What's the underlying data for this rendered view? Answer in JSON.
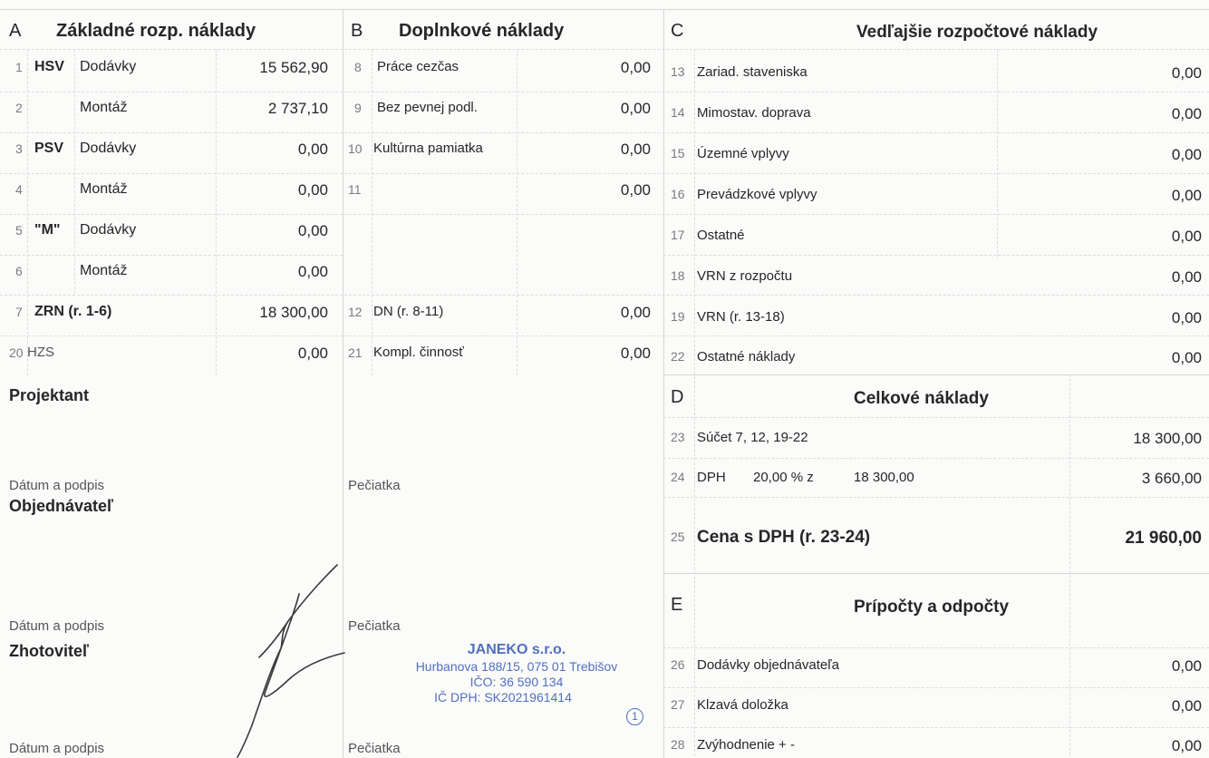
{
  "sections": {
    "a": {
      "letter": "A",
      "title": "Základné rozp. náklady"
    },
    "b": {
      "letter": "B",
      "title": "Doplnkové náklady"
    },
    "c": {
      "letter": "C",
      "title": "Vedľajšie rozpočtové náklady"
    },
    "d": {
      "letter": "D",
      "title": "Celkové náklady"
    },
    "e": {
      "letter": "E",
      "title": "Prípočty a odpočty"
    }
  },
  "a_rows": [
    {
      "num": "1",
      "group": "HSV",
      "label": "Dodávky",
      "value": "15 562,90"
    },
    {
      "num": "2",
      "group": "",
      "label": "Montáž",
      "value": "2 737,10"
    },
    {
      "num": "3",
      "group": "PSV",
      "label": "Dodávky",
      "value": "0,00"
    },
    {
      "num": "4",
      "group": "",
      "label": "Montáž",
      "value": "0,00"
    },
    {
      "num": "5",
      "group": "\"M\"",
      "label": "Dodávky",
      "value": "0,00"
    },
    {
      "num": "6",
      "group": "",
      "label": "Montáž",
      "value": "0,00"
    },
    {
      "num": "7",
      "group": "ZRN (r. 1-6)",
      "label": "",
      "value": "18 300,00"
    },
    {
      "num": "20",
      "group": "HZS",
      "label": "",
      "value": "0,00"
    }
  ],
  "b_rows": [
    {
      "num": "8",
      "label": "Práce cezčas",
      "value": "0,00"
    },
    {
      "num": "9",
      "label": "Bez pevnej podl.",
      "value": "0,00"
    },
    {
      "num": "10",
      "label": "Kultúrna pamiatka",
      "value": "0,00"
    },
    {
      "num": "11",
      "label": "",
      "value": "0,00"
    },
    {
      "num": "12",
      "label": "DN (r. 8-11)",
      "value": "0,00"
    },
    {
      "num": "21",
      "label": "Kompl. činnosť",
      "value": "0,00"
    }
  ],
  "c_rows": [
    {
      "num": "13",
      "label": "Zariad. staveniska",
      "value": "0,00"
    },
    {
      "num": "14",
      "label": "Mimostav. doprava",
      "value": "0,00"
    },
    {
      "num": "15",
      "label": "Územné vplyvy",
      "value": "0,00"
    },
    {
      "num": "16",
      "label": "Prevádzkové vplyvy",
      "value": "0,00"
    },
    {
      "num": "17",
      "label": "Ostatné",
      "value": "0,00"
    },
    {
      "num": "18",
      "label": "VRN z rozpočtu",
      "value": "0,00"
    },
    {
      "num": "19",
      "label": "VRN (r. 13-18)",
      "value": "0,00"
    },
    {
      "num": "22",
      "label": "Ostatné náklady",
      "value": "0,00"
    }
  ],
  "d_rows": {
    "r23": {
      "num": "23",
      "label": "Súčet 7, 12, 19-22",
      "value": "18 300,00"
    },
    "r24": {
      "num": "24",
      "label": "DPH",
      "rate": "20,00 % z",
      "base": "18 300,00",
      "value": "3 660,00"
    },
    "r25": {
      "num": "25",
      "label": "Cena s DPH (r. 23-24)",
      "value": "21 960,00"
    }
  },
  "e_rows": [
    {
      "num": "26",
      "label": "Dodávky objednávateľa",
      "value": "0,00"
    },
    {
      "num": "27",
      "label": "Klzavá doložka",
      "value": "0,00"
    },
    {
      "num": "28",
      "label": "Zvýhodnenie + -",
      "value": "0,00"
    }
  ],
  "signatures": {
    "projektant": "Projektant",
    "objednavatel": "Objednávateľ",
    "zhotovitel": "Zhotoviteľ",
    "datum": "Dátum a podpis",
    "peciatka": "Pečiatka"
  },
  "stamp": {
    "name": "JANEKO s.r.o.",
    "address": "Hurbanova 188/15, 075 01 Trebišov",
    "ico": "IČO: 36 590 134",
    "icdph": "IČ DPH: SK2021961414",
    "mark": "1"
  }
}
